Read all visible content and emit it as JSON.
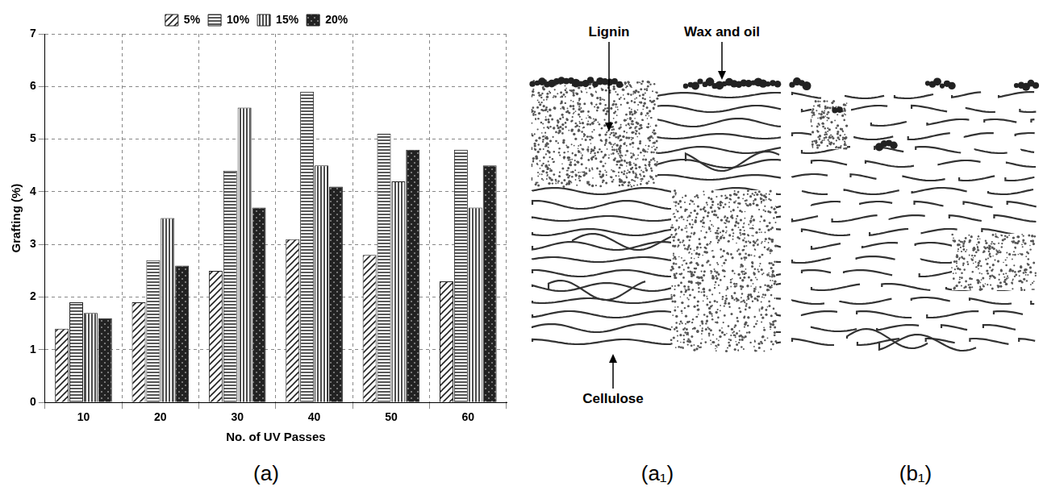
{
  "chart_data": {
    "type": "bar",
    "x_label": "No. of UV Passes",
    "y_label": "Grafting (%)",
    "categories": [
      "10",
      "20",
      "30",
      "40",
      "50",
      "60"
    ],
    "series": [
      {
        "name": "5%",
        "color": "#222222",
        "values": [
          1.4,
          1.9,
          2.5,
          3.1,
          2.8,
          2.3
        ]
      },
      {
        "name": "10%",
        "color": "#222222",
        "values": [
          1.9,
          2.7,
          4.4,
          5.9,
          5.1,
          4.8
        ]
      },
      {
        "name": "15%",
        "color": "#222222",
        "values": [
          1.7,
          3.5,
          5.6,
          4.5,
          4.2,
          3.7
        ]
      },
      {
        "name": "20%",
        "color": "#222222",
        "values": [
          1.6,
          2.6,
          3.7,
          4.1,
          4.8,
          4.5
        ]
      }
    ],
    "ylim": [
      0,
      7
    ],
    "yticks": [
      0,
      1,
      2,
      3,
      4,
      5,
      6,
      7
    ],
    "grid": true,
    "legend": "top"
  },
  "figure": {
    "panel_labels": [
      "(a)",
      "(a₁)",
      "(b₁)"
    ],
    "diagram_labels": {
      "lignin": "Lignin",
      "wax": "Wax and oil",
      "cellulose": "Cellulose"
    }
  }
}
